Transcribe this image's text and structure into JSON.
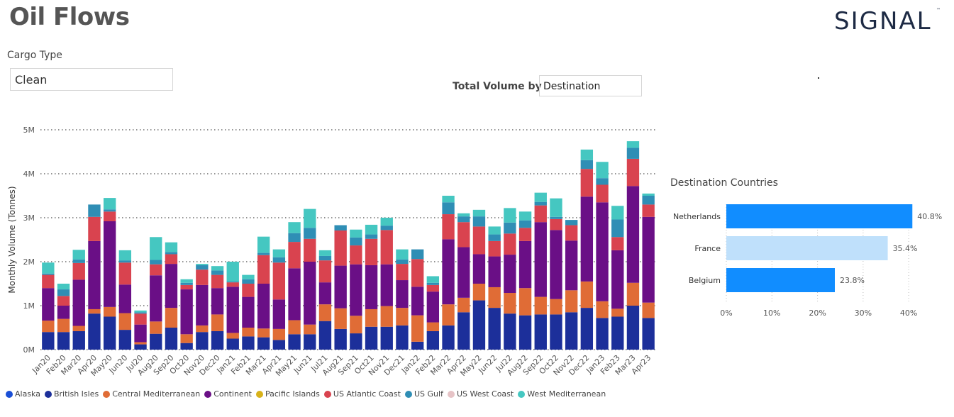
{
  "header": {
    "title": "Oil Flows",
    "logo_text": "SIGNAL"
  },
  "filters": {
    "cargo_label": "Cargo Type",
    "cargo_value": "Clean",
    "total_volume_label": "Total Volume by",
    "total_volume_value": "Destination"
  },
  "colors": {
    "Alaska": "#1a4fd6",
    "British Isles": "#1c2f9a",
    "Central Mediterranean": "#e06c36",
    "Continent": "#6a0f86",
    "Pacific Islands": "#d8b21a",
    "US Atlantic Coast": "#d9434f",
    "US Gulf": "#2f8eb5",
    "US West Coast": "#e6c3c6",
    "West Mediterranean": "#45c7c1"
  },
  "chart_data": [
    {
      "type": "bar",
      "stacked": true,
      "ylabel": "Monthly Volume (Tonnes)",
      "ylim": [
        0,
        5000000
      ],
      "yticks": [
        "0M",
        "1M",
        "2M",
        "3M",
        "4M",
        "5M"
      ],
      "x": [
        "Jan20",
        "Feb20",
        "Mar20",
        "Apr20",
        "May20",
        "Jun20",
        "Jul20",
        "Aug20",
        "Sep20",
        "Oct20",
        "Nov20",
        "Dec20",
        "Jan21",
        "Feb21",
        "Mar21",
        "Apr21",
        "May21",
        "Jun21",
        "Jul21",
        "Aug21",
        "Sep21",
        "Oct21",
        "Nov21",
        "Dec21",
        "Jan22",
        "Feb22",
        "Mar22",
        "Apr22",
        "May22",
        "Jun22",
        "Jul22",
        "Aug22",
        "Sep22",
        "Oct22",
        "Nov22",
        "Dec22",
        "Jan23",
        "Feb23",
        "Mar23",
        "Apr23"
      ],
      "bars": [
        [
          0.4,
          0.26,
          0.74,
          0.3,
          0.03,
          0.25
        ],
        [
          0.4,
          0.3,
          0.3,
          0.22,
          0.15,
          0.13
        ],
        [
          0.42,
          0.12,
          1.05,
          0.38,
          0.08,
          0.22
        ],
        [
          0.82,
          0.1,
          1.55,
          0.55,
          0.28,
          0
        ],
        [
          0.75,
          0.22,
          1.95,
          0.22,
          0.05,
          0.26
        ],
        [
          0.45,
          0.38,
          0.65,
          0.5,
          0.05,
          0.23
        ],
        [
          0.12,
          0.05,
          0.4,
          0.25,
          0.03,
          0.04
        ],
        [
          0.36,
          0.28,
          1.05,
          0.25,
          0.1,
          0.52
        ],
        [
          0.5,
          0.45,
          1.0,
          0.22,
          0.05,
          0.22
        ],
        [
          0.15,
          0.2,
          1.02,
          0.1,
          0.05,
          0.08
        ],
        [
          0.4,
          0.15,
          0.92,
          0.35,
          0.1,
          0.03
        ],
        [
          0.42,
          0.38,
          0.6,
          0.3,
          0.1,
          0.1
        ],
        [
          0.25,
          0.13,
          1.05,
          0.1,
          0.02,
          0.45
        ],
        [
          0.3,
          0.2,
          0.7,
          0.3,
          0.1,
          0.1
        ],
        [
          0.28,
          0.2,
          1.02,
          0.65,
          0.05,
          0.37
        ],
        [
          0.22,
          0.25,
          0.67,
          0.84,
          0.12,
          0.18
        ],
        [
          0.35,
          0.32,
          1.18,
          0.6,
          0.2,
          0.25
        ],
        [
          0.35,
          0.22,
          1.43,
          0.52,
          0.25,
          0.43
        ],
        [
          0.65,
          0.38,
          0.5,
          0.5,
          0.1,
          0.13
        ],
        [
          0.47,
          0.47,
          0.97,
          0.8,
          0.12,
          0
        ],
        [
          0.37,
          0.4,
          1.17,
          0.43,
          0.18,
          0.18
        ],
        [
          0.52,
          0.4,
          1.0,
          0.6,
          0.1,
          0.22
        ],
        [
          0.52,
          0.47,
          0.95,
          0.78,
          0.1,
          0.18
        ],
        [
          0.55,
          0.4,
          0.63,
          0.37,
          0.1,
          0.23
        ],
        [
          0.18,
          0.6,
          0.65,
          0.63,
          0.22,
          0
        ],
        [
          0.42,
          0.2,
          0.7,
          0.15,
          0.05,
          0.15
        ],
        [
          0.55,
          0.48,
          1.48,
          0.57,
          0.27,
          0.15
        ],
        [
          0.85,
          0.33,
          1.15,
          0.57,
          0.13,
          0.07
        ],
        [
          1.12,
          0.38,
          0.67,
          0.63,
          0.23,
          0.15
        ],
        [
          0.95,
          0.47,
          0.7,
          0.35,
          0.15,
          0.18
        ],
        [
          0.82,
          0.47,
          0.87,
          0.48,
          0.25,
          0.33
        ],
        [
          0.78,
          0.62,
          1.07,
          0.3,
          0.17,
          0.2
        ],
        [
          0.8,
          0.4,
          1.7,
          0.38,
          0.08,
          0.21
        ],
        [
          0.8,
          0.35,
          1.57,
          0.25,
          0.05,
          0.42
        ],
        [
          0.85,
          0.5,
          1.13,
          0.35,
          0.12,
          0
        ],
        [
          0.95,
          0.6,
          1.93,
          0.63,
          0.2,
          0.24
        ],
        [
          0.72,
          0.38,
          2.25,
          0.4,
          0.15,
          0.37
        ],
        [
          0.75,
          0.18,
          1.33,
          0.3,
          0.4,
          0.31
        ],
        [
          1.0,
          0.52,
          2.2,
          0.62,
          0.25,
          0.15
        ],
        [
          0.72,
          0.35,
          1.95,
          0.28,
          0.2,
          0.05
        ]
      ],
      "bar_order": [
        "British Isles",
        "Central Mediterranean",
        "Continent",
        "US Atlantic Coast",
        "US Gulf",
        "West Mediterranean"
      ],
      "legend": [
        "Alaska",
        "British Isles",
        "Central Mediterranean",
        "Continent",
        "Pacific Islands",
        "US Atlantic Coast",
        "US Gulf",
        "US West Coast",
        "West Mediterranean"
      ],
      "legend_position": "bottom"
    },
    {
      "type": "bar",
      "orientation": "horizontal",
      "title": "Destination Countries",
      "categories": [
        "Netherlands",
        "France",
        "Belgium"
      ],
      "values": [
        40.8,
        35.4,
        23.8
      ],
      "value_labels": [
        "40.8%",
        "35.4%",
        "23.8%"
      ],
      "xticks": [
        "0%",
        "10%",
        "20%",
        "30%",
        "40%"
      ],
      "colors": [
        "#118dff",
        "#bfe0fb",
        "#118dff"
      ]
    }
  ]
}
